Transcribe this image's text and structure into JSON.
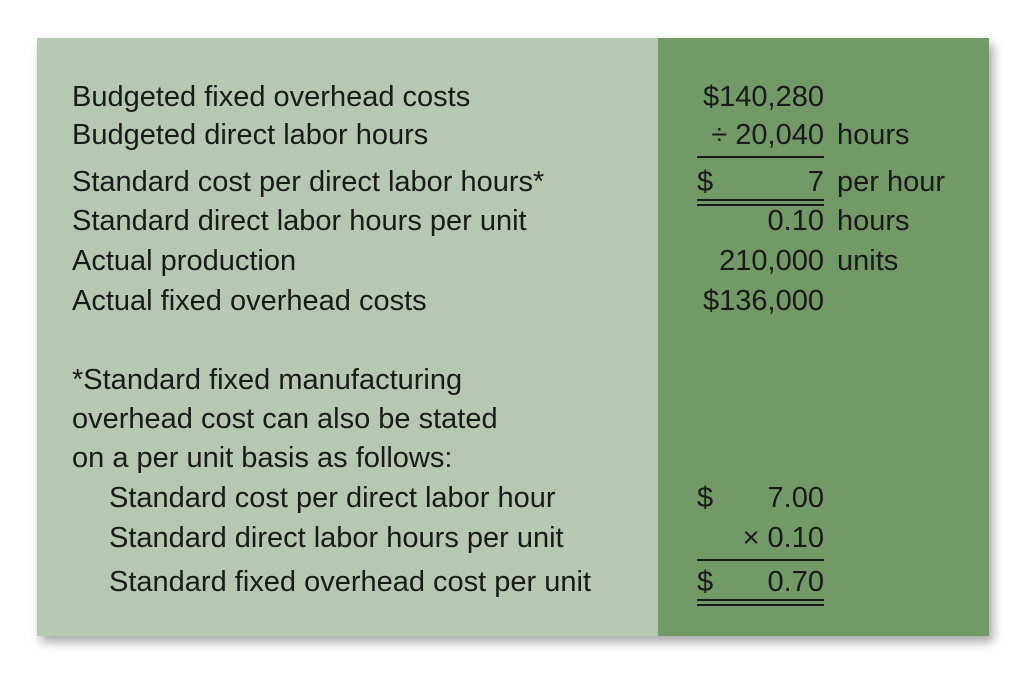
{
  "rows": [
    {
      "label": "Budgeted fixed overhead costs",
      "value": "$140,280",
      "unit": ""
    },
    {
      "label": "Budgeted direct labor hours",
      "value": "÷ 20,040",
      "unit": "hours"
    },
    {
      "label": "Standard cost per direct labor hours*",
      "dollar": "$",
      "value": "7",
      "unit": "per hour"
    },
    {
      "label": "Standard direct labor hours per unit",
      "value": "0.10",
      "unit": "hours"
    },
    {
      "label": "Actual production",
      "value": "210,000",
      "unit": "units"
    },
    {
      "label": "Actual fixed overhead costs",
      "value": "$136,000",
      "unit": ""
    }
  ],
  "footnote": {
    "lines": [
      "*Standard fixed manufacturing",
      "overhead cost can also be stated",
      "on a per unit basis as follows:"
    ],
    "rows": [
      {
        "label": "Standard cost per direct labor hour",
        "dollar": "$",
        "value": "7.00"
      },
      {
        "label": "Standard direct labor hours per unit",
        "value": "× 0.10"
      },
      {
        "label": "Standard fixed overhead cost per unit",
        "dollar": "$",
        "value": "0.70"
      }
    ]
  }
}
